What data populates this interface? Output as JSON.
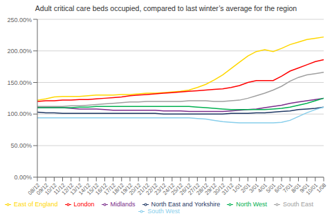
{
  "chart_data": {
    "type": "line",
    "title": "Adult critical care beds occupied, compared to last winter’s average for the region",
    "categories": [
      "08/12",
      "09/12",
      "10/12",
      "11/12",
      "12/12",
      "13/12",
      "14/12",
      "15/12",
      "16/12",
      "17/12",
      "18/12",
      "19/12",
      "20/12",
      "21/12",
      "22/12",
      "23/12",
      "24/12",
      "25/12",
      "26/12",
      "27/12",
      "28/12",
      "29/12",
      "30/12",
      "31/12",
      "1/01",
      "2/01",
      "3/01",
      "4/01",
      "5/01",
      "6/01",
      "7/01",
      "8/01",
      "9/01",
      "10/01",
      "1/08"
    ],
    "series": [
      {
        "name": "East of England",
        "color": "#FFD700",
        "values": [
          1.22,
          1.24,
          1.27,
          1.28,
          1.28,
          1.28,
          1.29,
          1.3,
          1.3,
          1.3,
          1.31,
          1.31,
          1.32,
          1.33,
          1.33,
          1.34,
          1.35,
          1.36,
          1.38,
          1.42,
          1.47,
          1.54,
          1.62,
          1.72,
          1.82,
          1.92,
          1.99,
          2.02,
          1.99,
          2.04,
          2.1,
          2.14,
          2.18,
          2.2,
          2.22
        ]
      },
      {
        "name": "London",
        "color": "#FF0000",
        "values": [
          1.2,
          1.21,
          1.21,
          1.22,
          1.22,
          1.23,
          1.23,
          1.24,
          1.25,
          1.26,
          1.27,
          1.29,
          1.3,
          1.31,
          1.32,
          1.33,
          1.34,
          1.35,
          1.36,
          1.37,
          1.38,
          1.39,
          1.4,
          1.42,
          1.45,
          1.5,
          1.53,
          1.53,
          1.53,
          1.6,
          1.68,
          1.73,
          1.78,
          1.83,
          1.86
        ]
      },
      {
        "name": "Midlands",
        "color": "#7B2D8B",
        "values": [
          1.1,
          1.1,
          1.1,
          1.1,
          1.09,
          1.08,
          1.08,
          1.08,
          1.07,
          1.06,
          1.06,
          1.06,
          1.06,
          1.06,
          1.06,
          1.05,
          1.05,
          1.05,
          1.04,
          1.04,
          1.04,
          1.04,
          1.04,
          1.05,
          1.06,
          1.07,
          1.08,
          1.1,
          1.12,
          1.14,
          1.17,
          1.19,
          1.21,
          1.23,
          1.25
        ]
      },
      {
        "name": "North East and Yorkshire",
        "color": "#1F3864",
        "values": [
          1.03,
          1.02,
          1.02,
          1.01,
          1.01,
          1.01,
          1.01,
          1.01,
          1.01,
          1.01,
          1.01,
          1.01,
          1.01,
          1.01,
          1.01,
          1.0,
          1.0,
          1.0,
          1.0,
          1.0,
          1.0,
          1.0,
          1.0,
          1.01,
          1.01,
          1.01,
          1.02,
          1.02,
          1.03,
          1.04,
          1.05,
          1.07,
          1.08,
          1.09,
          1.11
        ]
      },
      {
        "name": "North West",
        "color": "#00B050",
        "values": [
          1.1,
          1.1,
          1.1,
          1.1,
          1.1,
          1.11,
          1.11,
          1.12,
          1.12,
          1.12,
          1.12,
          1.12,
          1.12,
          1.12,
          1.12,
          1.12,
          1.12,
          1.12,
          1.12,
          1.11,
          1.1,
          1.09,
          1.08,
          1.07,
          1.07,
          1.07,
          1.07,
          1.07,
          1.08,
          1.09,
          1.11,
          1.14,
          1.17,
          1.21,
          1.25
        ]
      },
      {
        "name": "South East",
        "color": "#A0A0A0",
        "values": [
          1.12,
          1.12,
          1.12,
          1.12,
          1.13,
          1.13,
          1.14,
          1.15,
          1.16,
          1.17,
          1.18,
          1.19,
          1.19,
          1.2,
          1.2,
          1.2,
          1.2,
          1.2,
          1.21,
          1.21,
          1.21,
          1.2,
          1.2,
          1.21,
          1.22,
          1.25,
          1.29,
          1.33,
          1.38,
          1.44,
          1.52,
          1.58,
          1.62,
          1.64,
          1.66
        ]
      },
      {
        "name": "South West",
        "color": "#87CEEB",
        "values": [
          0.94,
          0.94,
          0.94,
          0.94,
          0.94,
          0.94,
          0.94,
          0.94,
          0.94,
          0.94,
          0.94,
          0.94,
          0.94,
          0.94,
          0.94,
          0.94,
          0.94,
          0.94,
          0.94,
          0.93,
          0.92,
          0.9,
          0.88,
          0.87,
          0.86,
          0.86,
          0.86,
          0.86,
          0.86,
          0.87,
          0.9,
          0.96,
          1.02,
          1.07,
          1.11
        ]
      }
    ],
    "ylim": [
      0.0,
      2.5
    ],
    "yticks": [
      {
        "value": 0.0,
        "label": "0.00%"
      },
      {
        "value": 0.5,
        "label": "50.00%"
      },
      {
        "value": 1.0,
        "label": "100.00%"
      },
      {
        "value": 1.5,
        "label": "150.00%"
      },
      {
        "value": 2.0,
        "label": "200.00%"
      },
      {
        "value": 2.5,
        "label": "250.00%"
      }
    ],
    "grid": true,
    "legend": "bottom"
  }
}
